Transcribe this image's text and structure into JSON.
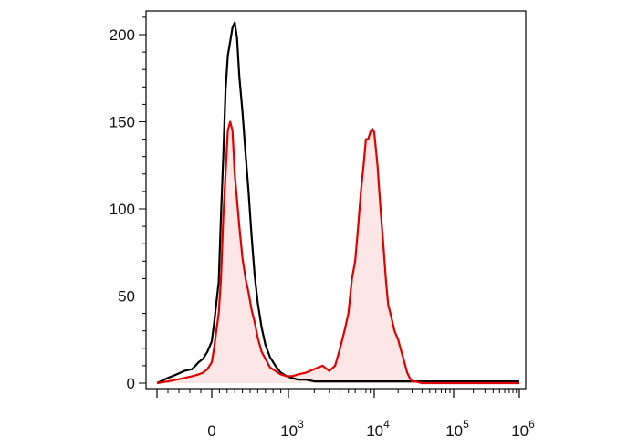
{
  "chart_data": {
    "type": "area",
    "title": "",
    "xlabel": "",
    "ylabel": "",
    "x_scale": "biexponential",
    "xlim": [
      -600,
      1000000
    ],
    "ylim": [
      0,
      210
    ],
    "grid": false,
    "legend": "none",
    "x_ticks": [
      {
        "value": 0,
        "base": "0",
        "exp": ""
      },
      {
        "value": 1000,
        "base": "10",
        "exp": "3"
      },
      {
        "value": 10000,
        "base": "10",
        "exp": "4"
      },
      {
        "value": 100000,
        "base": "10",
        "exp": "5"
      },
      {
        "value": 1000000,
        "base": "10",
        "exp": "6"
      }
    ],
    "y_ticks": [
      0,
      50,
      100,
      150,
      200
    ],
    "series": [
      {
        "color": "#000000",
        "fill": "none",
        "x": [
          -500,
          -400,
          -320,
          -250,
          -180,
          -120,
          -80,
          -40,
          0,
          30,
          60,
          90,
          120,
          150,
          180,
          210,
          240,
          270,
          300,
          330,
          360,
          400,
          440,
          480,
          520,
          560,
          600,
          650,
          700,
          760,
          830,
          900,
          980,
          1100,
          1300,
          1600,
          2000,
          3000,
          5000,
          10000,
          20000,
          30000,
          50000,
          100000,
          300000,
          1000000
        ],
        "values": [
          0,
          3,
          5,
          7,
          8,
          12,
          14,
          18,
          24,
          34,
          46,
          58,
          96,
          130,
          168,
          188,
          196,
          204,
          207,
          198,
          176,
          156,
          132,
          110,
          84,
          62,
          46,
          32,
          22,
          15,
          10,
          6,
          4,
          3,
          2,
          2,
          1,
          1,
          1,
          1,
          1,
          1,
          1,
          1,
          1,
          1
        ]
      },
      {
        "color": "#e00000",
        "fill": "#fce6e6",
        "x": [
          -500,
          -400,
          -320,
          -250,
          -180,
          -120,
          -80,
          -40,
          0,
          30,
          60,
          90,
          120,
          150,
          180,
          210,
          240,
          270,
          300,
          330,
          360,
          400,
          440,
          480,
          520,
          560,
          600,
          650,
          700,
          760,
          830,
          900,
          980,
          1100,
          1300,
          1600,
          2000,
          2500,
          3000,
          3500,
          4000,
          4500,
          5000,
          5500,
          6000,
          6500,
          7000,
          7500,
          8000,
          8500,
          9000,
          9500,
          10000,
          11000,
          12000,
          13000,
          14000,
          15000,
          16000,
          17000,
          18000,
          20000,
          22000,
          24000,
          26000,
          28000,
          30000,
          33000,
          40000,
          60000,
          100000,
          300000,
          1000000
        ],
        "values": [
          0,
          1,
          2,
          3,
          4,
          5,
          6,
          8,
          12,
          20,
          30,
          40,
          60,
          95,
          120,
          145,
          150,
          145,
          120,
          105,
          90,
          72,
          60,
          52,
          42,
          35,
          26,
          18,
          14,
          9,
          7,
          5,
          4,
          4,
          5,
          6,
          8,
          10,
          7,
          10,
          20,
          30,
          40,
          60,
          70,
          90,
          110,
          125,
          140,
          140,
          144,
          146,
          144,
          125,
          100,
          80,
          60,
          45,
          40,
          35,
          30,
          25,
          18,
          12,
          6,
          3,
          1,
          1,
          0,
          0,
          0,
          0,
          0
        ]
      }
    ]
  }
}
